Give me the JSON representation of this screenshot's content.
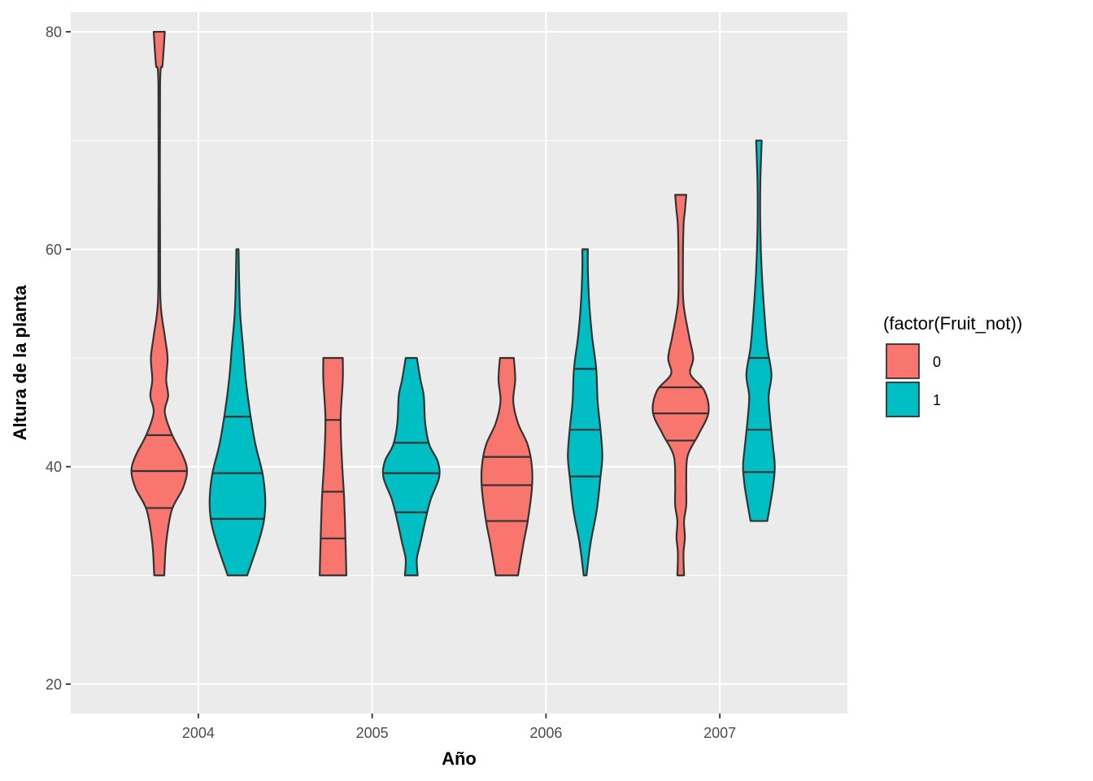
{
  "chart_data": {
    "type": "violin",
    "xlabel": "Año",
    "ylabel": "Altura de la planta",
    "x_categories": [
      "2004",
      "2005",
      "2006",
      "2007"
    ],
    "ylim": [
      17.3,
      81.8
    ],
    "y_ticks": [
      20,
      40,
      60,
      80
    ],
    "grid": true,
    "legend": {
      "title": "(factor(Fruit_not))",
      "placement": "right",
      "entries": [
        {
          "label": "0",
          "color": "#F8766D"
        },
        {
          "label": "1",
          "color": "#00BFC4"
        }
      ]
    },
    "colors": {
      "panel": "#EBEBEB",
      "grid": "#FFFFFF",
      "outline": "#333333"
    },
    "series": [
      {
        "year": "2004",
        "group": "0",
        "quantiles": [
          36.2,
          39.6,
          42.9
        ],
        "profile": [
          [
            30,
            0.18
          ],
          [
            33,
            0.25
          ],
          [
            36,
            0.45
          ],
          [
            38,
            0.85
          ],
          [
            39.6,
            1.0
          ],
          [
            41,
            0.85
          ],
          [
            43,
            0.45
          ],
          [
            45,
            0.2
          ],
          [
            46.5,
            0.32
          ],
          [
            48,
            0.25
          ],
          [
            50,
            0.3
          ],
          [
            52,
            0.2
          ],
          [
            55,
            0.05
          ],
          [
            60,
            0.03
          ],
          [
            75,
            0.03
          ],
          [
            77,
            0.12
          ],
          [
            80,
            0.2
          ]
        ]
      },
      {
        "year": "2004",
        "group": "1",
        "quantiles": [
          35.2,
          39.4,
          44.6
        ],
        "profile": [
          [
            30,
            0.35
          ],
          [
            33,
            0.75
          ],
          [
            35,
            0.95
          ],
          [
            37,
            1.0
          ],
          [
            39.4,
            0.9
          ],
          [
            42,
            0.65
          ],
          [
            45,
            0.45
          ],
          [
            48,
            0.3
          ],
          [
            51,
            0.2
          ],
          [
            54,
            0.1
          ],
          [
            57,
            0.06
          ],
          [
            60,
            0.04
          ]
        ]
      },
      {
        "year": "2005",
        "group": "0",
        "quantiles": [
          33.4,
          37.7,
          44.3
        ],
        "profile": [
          [
            30,
            0.48
          ],
          [
            33,
            0.45
          ],
          [
            37,
            0.4
          ],
          [
            40,
            0.33
          ],
          [
            43,
            0.28
          ],
          [
            45,
            0.28
          ],
          [
            48,
            0.35
          ],
          [
            50,
            0.35
          ]
        ]
      },
      {
        "year": "2005",
        "group": "1",
        "quantiles": [
          35.8,
          39.4,
          42.2
        ],
        "profile": [
          [
            30,
            0.23
          ],
          [
            31.5,
            0.2
          ],
          [
            33,
            0.33
          ],
          [
            35,
            0.5
          ],
          [
            37,
            0.7
          ],
          [
            39,
            1.0
          ],
          [
            40.5,
            0.95
          ],
          [
            42,
            0.65
          ],
          [
            44,
            0.5
          ],
          [
            46.5,
            0.45
          ],
          [
            48,
            0.33
          ],
          [
            50,
            0.2
          ]
        ]
      },
      {
        "year": "2006",
        "group": "0",
        "quantiles": [
          35.0,
          38.3,
          40.9
        ],
        "profile": [
          [
            30,
            0.4
          ],
          [
            33,
            0.6
          ],
          [
            35,
            0.75
          ],
          [
            38,
            0.9
          ],
          [
            40,
            0.9
          ],
          [
            42,
            0.75
          ],
          [
            44,
            0.4
          ],
          [
            46,
            0.23
          ],
          [
            48,
            0.3
          ],
          [
            50,
            0.25
          ]
        ]
      },
      {
        "year": "2006",
        "group": "1",
        "quantiles": [
          39.1,
          43.4,
          49.0
        ],
        "profile": [
          [
            30,
            0.05
          ],
          [
            33,
            0.2
          ],
          [
            36,
            0.42
          ],
          [
            39,
            0.55
          ],
          [
            41,
            0.62
          ],
          [
            43.5,
            0.55
          ],
          [
            46,
            0.45
          ],
          [
            49,
            0.4
          ],
          [
            52,
            0.25
          ],
          [
            55,
            0.15
          ],
          [
            58,
            0.1
          ],
          [
            60,
            0.1
          ]
        ]
      },
      {
        "year": "2007",
        "group": "0",
        "quantiles": [
          42.4,
          44.9,
          47.3
        ],
        "profile": [
          [
            30,
            0.12
          ],
          [
            32,
            0.1
          ],
          [
            33.5,
            0.15
          ],
          [
            35,
            0.12
          ],
          [
            36.5,
            0.2
          ],
          [
            38.5,
            0.2
          ],
          [
            41,
            0.25
          ],
          [
            43,
            0.65
          ],
          [
            45,
            1.0
          ],
          [
            47,
            0.85
          ],
          [
            48.5,
            0.35
          ],
          [
            50,
            0.45
          ],
          [
            52,
            0.3
          ],
          [
            55,
            0.1
          ],
          [
            58,
            0.08
          ],
          [
            62,
            0.1
          ],
          [
            63.5,
            0.15
          ],
          [
            65,
            0.2
          ]
        ]
      },
      {
        "year": "2007",
        "group": "1",
        "quantiles": [
          39.5,
          43.4,
          50.0
        ],
        "profile": [
          [
            35,
            0.3
          ],
          [
            38,
            0.5
          ],
          [
            40,
            0.57
          ],
          [
            42,
            0.5
          ],
          [
            44.5,
            0.4
          ],
          [
            46.5,
            0.35
          ],
          [
            48.5,
            0.45
          ],
          [
            51,
            0.3
          ],
          [
            54,
            0.2
          ],
          [
            58,
            0.1
          ],
          [
            62,
            0.05
          ],
          [
            66,
            0.05
          ],
          [
            70,
            0.1
          ]
        ]
      }
    ]
  }
}
